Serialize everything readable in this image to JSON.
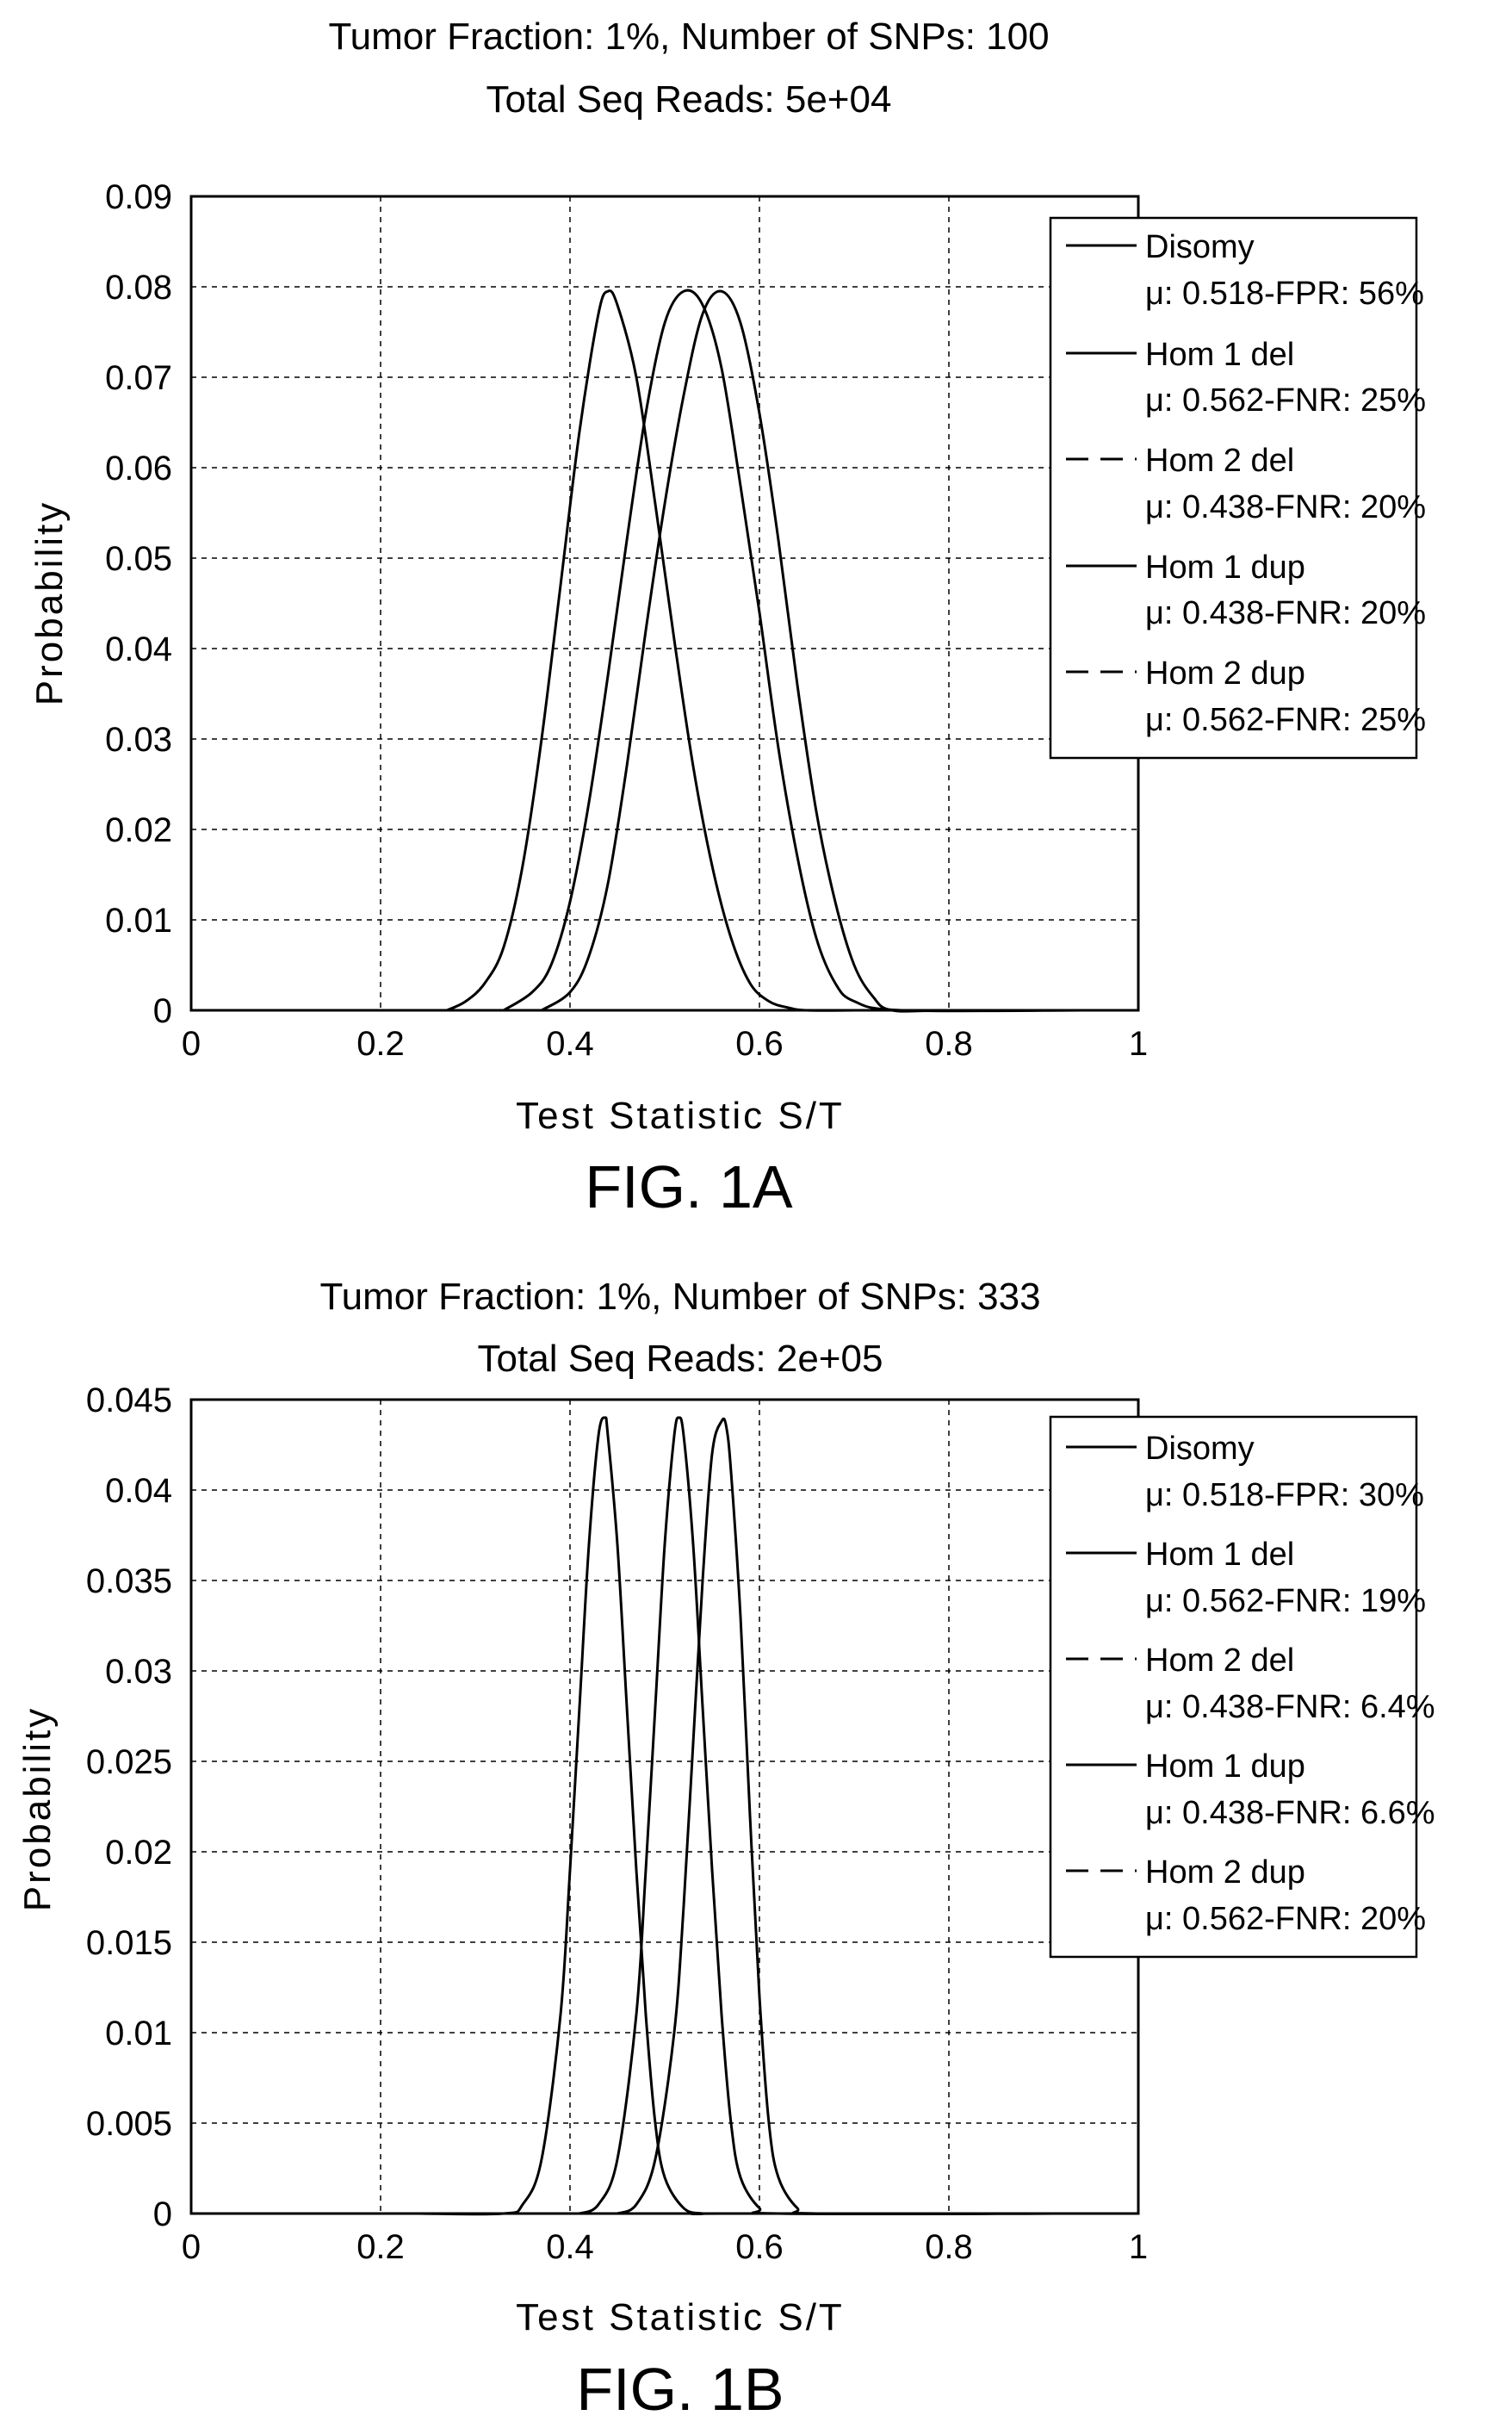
{
  "chart_data": [
    {
      "type": "line",
      "title": "Tumor Fraction: 1%, Number of SNPs: 100",
      "subtitle": "Total Seq Reads: 5e+04",
      "xlabel": "Test Statistic S/T",
      "ylabel": "Probability",
      "caption": "FIG. 1A",
      "xlim": [
        0,
        1
      ],
      "ylim": [
        0,
        0.09
      ],
      "xticks": [
        0,
        0.2,
        0.4,
        0.6,
        0.8,
        1
      ],
      "xtick_labels": [
        "0",
        "0.2",
        "0.4",
        "0.6",
        "0.8",
        "1"
      ],
      "yticks": [
        0,
        0.01,
        0.02,
        0.03,
        0.04,
        0.05,
        0.06,
        0.07,
        0.08,
        0.09
      ],
      "ytick_labels": [
        "0",
        "0.01",
        "0.02",
        "0.03",
        "0.04",
        "0.05",
        "0.06",
        "0.07",
        "0.08",
        "0.09"
      ],
      "grid": true,
      "legend_position": "top-right",
      "series": [
        {
          "name": "Disomy",
          "detail": "μ: 0.518-FPR: 56%",
          "style": "solid",
          "x": [
            0.33,
            0.36,
            0.38,
            0.4,
            0.42,
            0.44,
            0.46,
            0.48,
            0.5,
            0.52,
            0.54,
            0.56,
            0.58,
            0.6,
            0.62,
            0.64,
            0.66,
            0.68,
            0.7,
            0.75,
            0.94
          ],
          "y": [
            0,
            0.002,
            0.005,
            0.012,
            0.023,
            0.037,
            0.052,
            0.066,
            0.076,
            0.0795,
            0.078,
            0.071,
            0.058,
            0.044,
            0.029,
            0.017,
            0.008,
            0.003,
            0.001,
            0,
            0
          ]
        },
        {
          "name": "Hom 1 del",
          "detail": "μ: 0.562-FNR: 25%",
          "style": "solid",
          "x": [
            0.37,
            0.4,
            0.42,
            0.44,
            0.46,
            0.48,
            0.5,
            0.52,
            0.54,
            0.56,
            0.58,
            0.6,
            0.62,
            0.64,
            0.66,
            0.68,
            0.7,
            0.72,
            0.74,
            0.8,
            0.94
          ],
          "y": [
            0,
            0.002,
            0.006,
            0.014,
            0.027,
            0.042,
            0.056,
            0.068,
            0.077,
            0.0795,
            0.076,
            0.066,
            0.052,
            0.036,
            0.022,
            0.012,
            0.005,
            0.0015,
            0,
            0,
            0
          ]
        },
        {
          "name": "Hom 2 del",
          "detail": "μ: 0.438-FNR: 20%",
          "style": "dashed",
          "x": [],
          "y": []
        },
        {
          "name": "Hom 1 dup",
          "detail": "μ: 0.438-FNR: 20%",
          "style": "solid",
          "x": [
            0.27,
            0.29,
            0.31,
            0.33,
            0.35,
            0.37,
            0.39,
            0.41,
            0.43,
            0.44,
            0.45,
            0.47,
            0.49,
            0.51,
            0.53,
            0.55,
            0.57,
            0.59,
            0.61,
            0.63,
            0.65,
            0.7
          ],
          "y": [
            0,
            0.001,
            0.003,
            0.007,
            0.016,
            0.03,
            0.047,
            0.064,
            0.077,
            0.0795,
            0.078,
            0.07,
            0.056,
            0.041,
            0.027,
            0.016,
            0.008,
            0.003,
            0.001,
            0.0003,
            0,
            0
          ]
        },
        {
          "name": "Hom 2 dup",
          "detail": "μ: 0.562-FNR: 25%",
          "style": "dashed",
          "x": [],
          "y": []
        }
      ]
    },
    {
      "type": "line",
      "title": "Tumor Fraction: 1%, Number of SNPs: 333",
      "subtitle": "Total Seq Reads: 2e+05",
      "xlabel": "Test Statistic S/T",
      "ylabel": "Probability",
      "caption": "FIG. 1B",
      "xlim": [
        0,
        1
      ],
      "ylim": [
        0,
        0.045
      ],
      "xticks": [
        0,
        0.2,
        0.4,
        0.6,
        0.8,
        1
      ],
      "xtick_labels": [
        "0",
        "0.2",
        "0.4",
        "0.6",
        "0.8",
        "1"
      ],
      "yticks": [
        0,
        0.005,
        0.01,
        0.015,
        0.02,
        0.025,
        0.03,
        0.035,
        0.04,
        0.045
      ],
      "ytick_labels": [
        "0",
        "0.005",
        "0.01",
        "0.015",
        "0.02",
        "0.025",
        "0.03",
        "0.035",
        "0.04",
        "0.045"
      ],
      "grid": true,
      "legend_position": "top-right",
      "series": [
        {
          "name": "Disomy",
          "detail": "μ: 0.518-FPR: 30%",
          "style": "solid",
          "x": [
            0.41,
            0.43,
            0.45,
            0.47,
            0.48,
            0.49,
            0.5,
            0.51,
            0.515,
            0.52,
            0.53,
            0.54,
            0.55,
            0.56,
            0.57,
            0.58,
            0.6,
            0.62,
            0.91
          ],
          "y": [
            0,
            0.0005,
            0.003,
            0.011,
            0.019,
            0.028,
            0.037,
            0.043,
            0.044,
            0.043,
            0.037,
            0.028,
            0.019,
            0.011,
            0.005,
            0.002,
            0.0003,
            0,
            0
          ]
        },
        {
          "name": "Hom 1 del",
          "detail": "μ: 0.562-FNR: 19%",
          "style": "solid",
          "x": [
            0.45,
            0.47,
            0.49,
            0.51,
            0.52,
            0.53,
            0.54,
            0.55,
            0.56,
            0.565,
            0.57,
            0.58,
            0.59,
            0.6,
            0.61,
            0.62,
            0.64,
            0.66,
            0.91
          ],
          "y": [
            0,
            0.0005,
            0.003,
            0.01,
            0.017,
            0.026,
            0.035,
            0.042,
            0.0438,
            0.0435,
            0.041,
            0.033,
            0.022,
            0.012,
            0.005,
            0.002,
            0.0003,
            0,
            0
          ]
        },
        {
          "name": "Hom 2 del",
          "detail": "μ: 0.438-FNR: 6.4%",
          "style": "dashed",
          "x": [],
          "y": []
        },
        {
          "name": "Hom 1 dup",
          "detail": "μ: 0.438-FNR: 6.6%",
          "style": "solid",
          "x": [
            0.24,
            0.33,
            0.35,
            0.37,
            0.39,
            0.4,
            0.41,
            0.42,
            0.43,
            0.437,
            0.44,
            0.45,
            0.46,
            0.47,
            0.48,
            0.49,
            0.5,
            0.52,
            0.54,
            0.56,
            0.91
          ],
          "y": [
            0,
            0,
            0.0005,
            0.003,
            0.011,
            0.019,
            0.028,
            0.037,
            0.043,
            0.044,
            0.043,
            0.037,
            0.028,
            0.019,
            0.011,
            0.005,
            0.002,
            0.0003,
            0,
            0,
            0
          ]
        },
        {
          "name": "Hom 2 dup",
          "detail": "μ: 0.562-FNR: 20%",
          "style": "dashed",
          "x": [],
          "y": []
        }
      ]
    }
  ]
}
